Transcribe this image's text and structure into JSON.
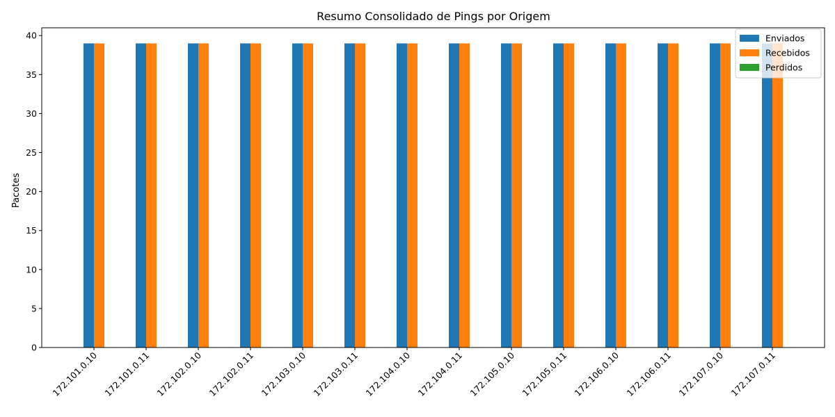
{
  "chart_data": {
    "type": "bar",
    "title": "Resumo Consolidado de Pings por Origem",
    "xlabel": "",
    "ylabel": "Pacotes",
    "ylim": [
      0,
      41
    ],
    "yticks": [
      0,
      5,
      10,
      15,
      20,
      25,
      30,
      35,
      40
    ],
    "categories": [
      "172.101.0.10",
      "172.101.0.11",
      "172.102.0.10",
      "172.102.0.11",
      "172.103.0.10",
      "172.103.0.11",
      "172.104.0.10",
      "172.104.0.11",
      "172.105.0.10",
      "172.105.0.11",
      "172.106.0.10",
      "172.106.0.11",
      "172.107.0.10",
      "172.107.0.11"
    ],
    "series": [
      {
        "name": "Enviados",
        "color": "#1f77b4",
        "values": [
          39,
          39,
          39,
          39,
          39,
          39,
          39,
          39,
          39,
          39,
          39,
          39,
          39,
          39
        ]
      },
      {
        "name": "Recebidos",
        "color": "#ff7f0e",
        "values": [
          39,
          39,
          39,
          39,
          39,
          39,
          39,
          39,
          39,
          39,
          39,
          39,
          39,
          39
        ]
      },
      {
        "name": "Perdidos",
        "color": "#2ca02c",
        "values": [
          0,
          0,
          0,
          0,
          0,
          0,
          0,
          0,
          0,
          0,
          0,
          0,
          0,
          0
        ]
      }
    ],
    "legend_position": "top-right",
    "grid": false,
    "xtick_rotation": 45
  }
}
